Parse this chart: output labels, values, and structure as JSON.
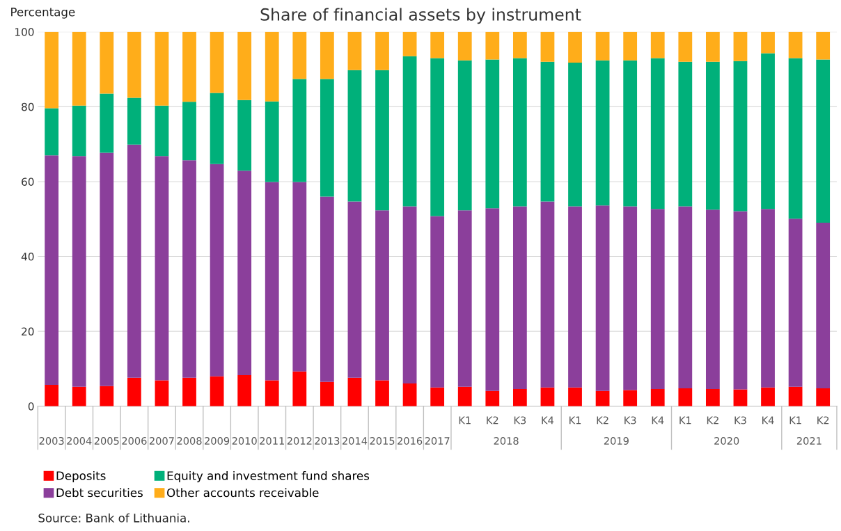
{
  "chart_data": {
    "type": "bar",
    "stacked": true,
    "title": "Share of financial assets by instrument",
    "ylabel": "Percentage",
    "categories": [
      "2003",
      "2004",
      "2005",
      "2006",
      "2007",
      "2008",
      "2009",
      "2010",
      "2011",
      "2012",
      "2013",
      "2014",
      "2015",
      "2016",
      "2017",
      "K1",
      "K2",
      "K3",
      "K4",
      "K1",
      "K2",
      "K3",
      "K4",
      "K1",
      "K2",
      "K3",
      "K4",
      "K1",
      "K2"
    ],
    "series": [
      {
        "name": "Deposits",
        "color": "#ff0000",
        "values": [
          5.7,
          5.2,
          5.4,
          7.6,
          6.9,
          7.6,
          8.0,
          8.3,
          6.9,
          9.3,
          6.5,
          7.6,
          6.9,
          6.1,
          5.0,
          5.2,
          4.1,
          4.6,
          5.0,
          5.0,
          4.1,
          4.3,
          4.6,
          4.8,
          4.6,
          4.5,
          5.0,
          5.2,
          4.8
        ]
      },
      {
        "name": "Debt securities",
        "color": "#8b3f9b",
        "values": [
          61.3,
          61.6,
          62.3,
          62.3,
          59.9,
          58.1,
          56.7,
          54.6,
          53.0,
          50.6,
          49.5,
          47.1,
          45.4,
          47.3,
          45.8,
          47.1,
          48.8,
          48.8,
          49.7,
          48.4,
          49.5,
          49.1,
          48.1,
          48.6,
          47.9,
          47.6,
          47.7,
          44.9,
          44.2
        ]
      },
      {
        "name": "Equity and investment fund shares",
        "color": "#00b07a",
        "values": [
          12.6,
          13.5,
          15.8,
          12.5,
          13.5,
          15.6,
          19.0,
          18.9,
          21.5,
          27.5,
          31.4,
          35.1,
          37.5,
          40.1,
          42.2,
          40.1,
          39.7,
          39.6,
          37.3,
          38.4,
          38.8,
          39.0,
          40.3,
          38.6,
          39.5,
          40.1,
          41.6,
          42.9,
          43.6
        ]
      },
      {
        "name": "Other accounts receivable",
        "color": "#ffad1a",
        "values": [
          20.4,
          19.7,
          16.5,
          17.6,
          19.7,
          18.7,
          16.3,
          18.2,
          18.6,
          12.6,
          12.6,
          10.2,
          10.2,
          6.5,
          7.0,
          7.6,
          7.4,
          7.0,
          8.0,
          8.2,
          7.6,
          7.6,
          7.0,
          8.0,
          8.0,
          7.8,
          5.7,
          7.0,
          7.4
        ]
      }
    ],
    "ylim": [
      0,
      100
    ],
    "yticks": [
      0,
      20,
      40,
      60,
      80,
      100
    ],
    "grid": "y",
    "legend": "bottom",
    "annotations": [
      "2018",
      "2019",
      "2020",
      "2021",
      "Source: Bank of Lithuania."
    ]
  }
}
